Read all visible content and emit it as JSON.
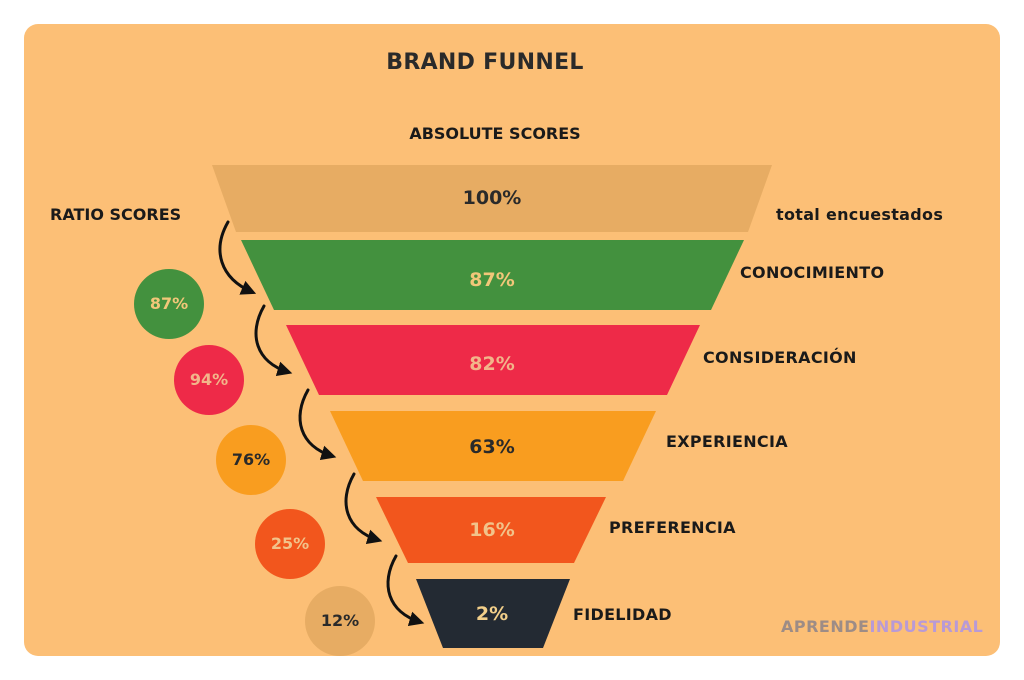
{
  "title": "BRAND FUNNEL",
  "absolute_label": "ABSOLUTE SCORES",
  "ratio_label": "RATIO SCORES",
  "total_label": "total encuestados",
  "stages": [
    {
      "name": "",
      "pct": "100%",
      "color": "#e7ac63",
      "text_color": "#2a2a2a"
    },
    {
      "name": "CONOCIMIENTO",
      "pct": "87%",
      "color": "#43913e",
      "text_color": "#f2c779"
    },
    {
      "name": "CONSIDERACIÓN",
      "pct": "82%",
      "color": "#ee2a48",
      "text_color": "#f2b58a"
    },
    {
      "name": "EXPERIENCIA",
      "pct": "63%",
      "color": "#f99d1f",
      "text_color": "#2a2a2a"
    },
    {
      "name": "PREFERENCIA",
      "pct": "16%",
      "color": "#f2561d",
      "text_color": "#f2c38a"
    },
    {
      "name": "FIDELIDAD",
      "pct": "2%",
      "color": "#232a33",
      "text_color": "#f2cf8a"
    }
  ],
  "ratios": [
    {
      "pct": "87%",
      "color": "#43913e",
      "text_color": "#f2c779"
    },
    {
      "pct": "94%",
      "color": "#ee2a48",
      "text_color": "#f2b58a"
    },
    {
      "pct": "76%",
      "color": "#f99d1f",
      "text_color": "#2a2a2a"
    },
    {
      "pct": "25%",
      "color": "#f2561d",
      "text_color": "#f2c38a"
    },
    {
      "pct": "12%",
      "color": "#e7ac63",
      "text_color": "#2a2a2a"
    }
  ],
  "brand": {
    "part1": "APRENDE",
    "part2": "INDUSTRIAL"
  }
}
